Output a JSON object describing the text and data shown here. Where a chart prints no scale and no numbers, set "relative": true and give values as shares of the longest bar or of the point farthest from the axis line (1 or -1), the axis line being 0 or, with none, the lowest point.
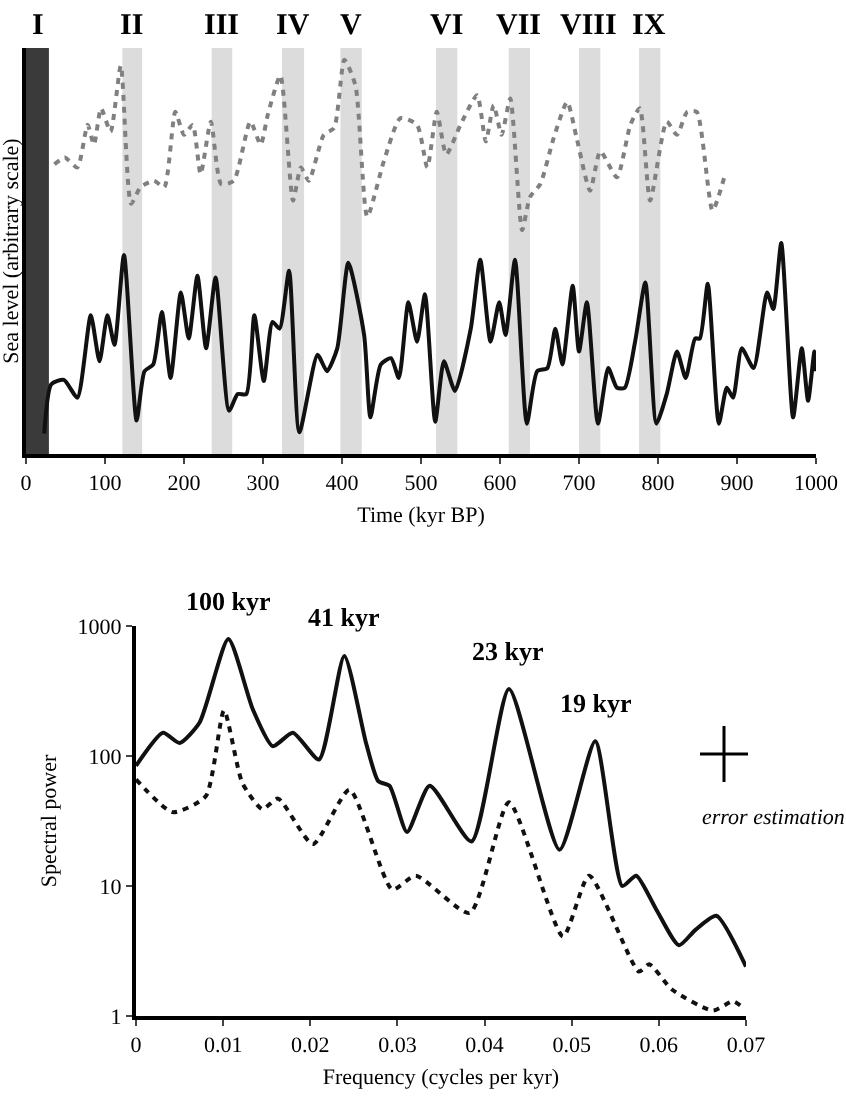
{
  "chart_data": [
    {
      "type": "line",
      "relative": true,
      "xlabel": "Time (kyr BP)",
      "ylabel": "Sea level (arbitrary scale)",
      "xlim": [
        0,
        1000
      ],
      "xticks": [
        0,
        100,
        200,
        300,
        400,
        500,
        600,
        700,
        800,
        900,
        1000
      ],
      "grid": false,
      "bands": [
        {
          "axis": "x",
          "from": 0,
          "to": 29,
          "label": "I",
          "color": "#3a3a3a"
        },
        {
          "axis": "x",
          "from": 122,
          "to": 147,
          "label": "II",
          "color": "#dcdcdc"
        },
        {
          "axis": "x",
          "from": 235,
          "to": 261,
          "label": "III",
          "color": "#dcdcdc"
        },
        {
          "axis": "x",
          "from": 324,
          "to": 352,
          "label": "IV",
          "color": "#dcdcdc"
        },
        {
          "axis": "x",
          "from": 398,
          "to": 425,
          "label": "V",
          "color": "#dcdcdc"
        },
        {
          "axis": "x",
          "from": 519,
          "to": 546,
          "label": "VI",
          "color": "#dcdcdc"
        },
        {
          "axis": "x",
          "from": 611,
          "to": 638,
          "label": "VII",
          "color": "#dcdcdc"
        },
        {
          "axis": "x",
          "from": 700,
          "to": 727,
          "label": "VIII",
          "color": "#dcdcdc"
        },
        {
          "axis": "x",
          "from": 776,
          "to": 803,
          "label": "IX",
          "color": "#dcdcdc"
        }
      ],
      "series": [
        {
          "color": "#808080",
          "line_style": "dotted",
          "x": [
            36,
            49,
            65,
            78,
            86,
            95,
            107,
            120,
            133,
            145,
            162,
            175,
            189,
            200,
            211,
            221,
            234,
            247,
            263,
            284,
            297,
            306,
            322,
            338,
            348,
            358,
            377,
            390,
            403,
            417,
            432,
            453,
            474,
            495,
            508,
            520,
            532,
            550,
            571,
            582,
            592,
            602,
            613,
            628,
            638,
            651,
            668,
            685,
            697,
            714,
            727,
            748,
            765,
            777,
            790,
            811,
            824,
            837,
            849,
            869,
            885
          ],
          "values": [
            0.735,
            0.752,
            0.727,
            0.835,
            0.785,
            0.877,
            0.818,
            0.985,
            0.635,
            0.677,
            0.693,
            0.677,
            0.868,
            0.81,
            0.835,
            0.71,
            0.843,
            0.685,
            0.693,
            0.843,
            0.785,
            0.86,
            0.96,
            0.643,
            0.727,
            0.693,
            0.81,
            0.827,
            1,
            0.935,
            0.602,
            0.743,
            0.852,
            0.835,
            0.727,
            0.868,
            0.76,
            0.835,
            0.91,
            0.793,
            0.885,
            0.81,
            0.902,
            0.568,
            0.652,
            0.685,
            0.802,
            0.893,
            0.802,
            0.668,
            0.768,
            0.702,
            0.835,
            0.877,
            0.643,
            0.843,
            0.81,
            0.868,
            0.868,
            0.618,
            0.71
          ]
        },
        {
          "color": "#111111",
          "line_style": "solid",
          "x": [
            23,
            32,
            48,
            65,
            82,
            93,
            103,
            112,
            124,
            140,
            150,
            161,
            172,
            183,
            196,
            206,
            217,
            228,
            240,
            257,
            268,
            279,
            289,
            301,
            312,
            321,
            333,
            346,
            369,
            381,
            394,
            408,
            428,
            436,
            449,
            462,
            472,
            484,
            495,
            505,
            518,
            529,
            543,
            563,
            575,
            588,
            599,
            607,
            619,
            634,
            647,
            660,
            670,
            679,
            692,
            700,
            710,
            724,
            737,
            748,
            758,
            771,
            784,
            798,
            811,
            824,
            835,
            847,
            853,
            863,
            877,
            887,
            895,
            906,
            921,
            938,
            946,
            956,
            971,
            982,
            990,
            998,
            1000
          ],
          "values": [
            0.052,
            0.177,
            0.188,
            0.143,
            0.352,
            0.235,
            0.352,
            0.277,
            0.505,
            0.085,
            0.21,
            0.227,
            0.36,
            0.193,
            0.41,
            0.293,
            0.452,
            0.268,
            0.448,
            0.11,
            0.152,
            0.152,
            0.352,
            0.185,
            0.335,
            0.318,
            0.465,
            0.055,
            0.252,
            0.21,
            0.268,
            0.485,
            0.302,
            0.093,
            0.227,
            0.243,
            0.193,
            0.385,
            0.285,
            0.405,
            0.082,
            0.235,
            0.16,
            0.318,
            0.493,
            0.285,
            0.385,
            0.302,
            0.493,
            0.077,
            0.21,
            0.218,
            0.318,
            0.227,
            0.427,
            0.26,
            0.385,
            0.077,
            0.218,
            0.168,
            0.168,
            0.285,
            0.435,
            0.077,
            0.152,
            0.26,
            0.193,
            0.293,
            0.293,
            0.432,
            0.077,
            0.168,
            0.143,
            0.268,
            0.218,
            0.41,
            0.368,
            0.535,
            0.093,
            0.268,
            0.135,
            0.26,
            0.21
          ]
        }
      ]
    },
    {
      "type": "line",
      "xlabel": "Frequency (cycles per kyr)",
      "ylabel": "Spectral power",
      "log": "y",
      "xlim": [
        0,
        0.07
      ],
      "xticks": [
        0,
        0.01,
        0.02,
        0.03,
        0.04,
        0.05,
        0.06,
        0.07
      ],
      "ylim": [
        1,
        1000
      ],
      "yticks": [
        1,
        10,
        100,
        1000
      ],
      "grid": false,
      "annotations": [
        {
          "text": "100 kyr",
          "x": 0.0106,
          "y": 794
        },
        {
          "text": "41 kyr",
          "x": 0.0239,
          "y": 589
        },
        {
          "text": "23 kyr",
          "x": 0.0428,
          "y": 327
        },
        {
          "text": "19 kyr",
          "x": 0.0527,
          "y": 130
        },
        "error estimation"
      ],
      "series": [
        {
          "color": "#111111",
          "line_style": "solid",
          "x": [
            0,
            0.0031,
            0.005,
            0.0073,
            0.0106,
            0.0134,
            0.0157,
            0.018,
            0.021,
            0.0239,
            0.0264,
            0.0278,
            0.0291,
            0.0311,
            0.0337,
            0.0385,
            0.0428,
            0.0486,
            0.0527,
            0.0558,
            0.0574,
            0.0597,
            0.0623,
            0.0642,
            0.0666,
            0.07
          ],
          "values": [
            84,
            151,
            126,
            181,
            794,
            229,
            119,
            151,
            94,
            589,
            126,
            64,
            59,
            26,
            59,
            22,
            327,
            19,
            130,
            10,
            12,
            6.6,
            3.5,
            4.6,
            5.9,
            2.4
          ]
        },
        {
          "color": "#111111",
          "line_style": "dotted",
          "x": [
            0,
            0.0042,
            0.008,
            0.0101,
            0.0122,
            0.0145,
            0.0163,
            0.0203,
            0.0245,
            0.0294,
            0.0321,
            0.0383,
            0.0428,
            0.049,
            0.052,
            0.0577,
            0.0589,
            0.0615,
            0.0662,
            0.0685,
            0.0694
          ],
          "values": [
            66,
            37,
            49,
            224,
            62,
            39,
            47,
            21,
            55,
            9.4,
            12,
            6.2,
            44,
            4.1,
            12,
            2.2,
            2.5,
            1.6,
            1.1,
            1.3,
            1.2
          ]
        }
      ]
    }
  ]
}
